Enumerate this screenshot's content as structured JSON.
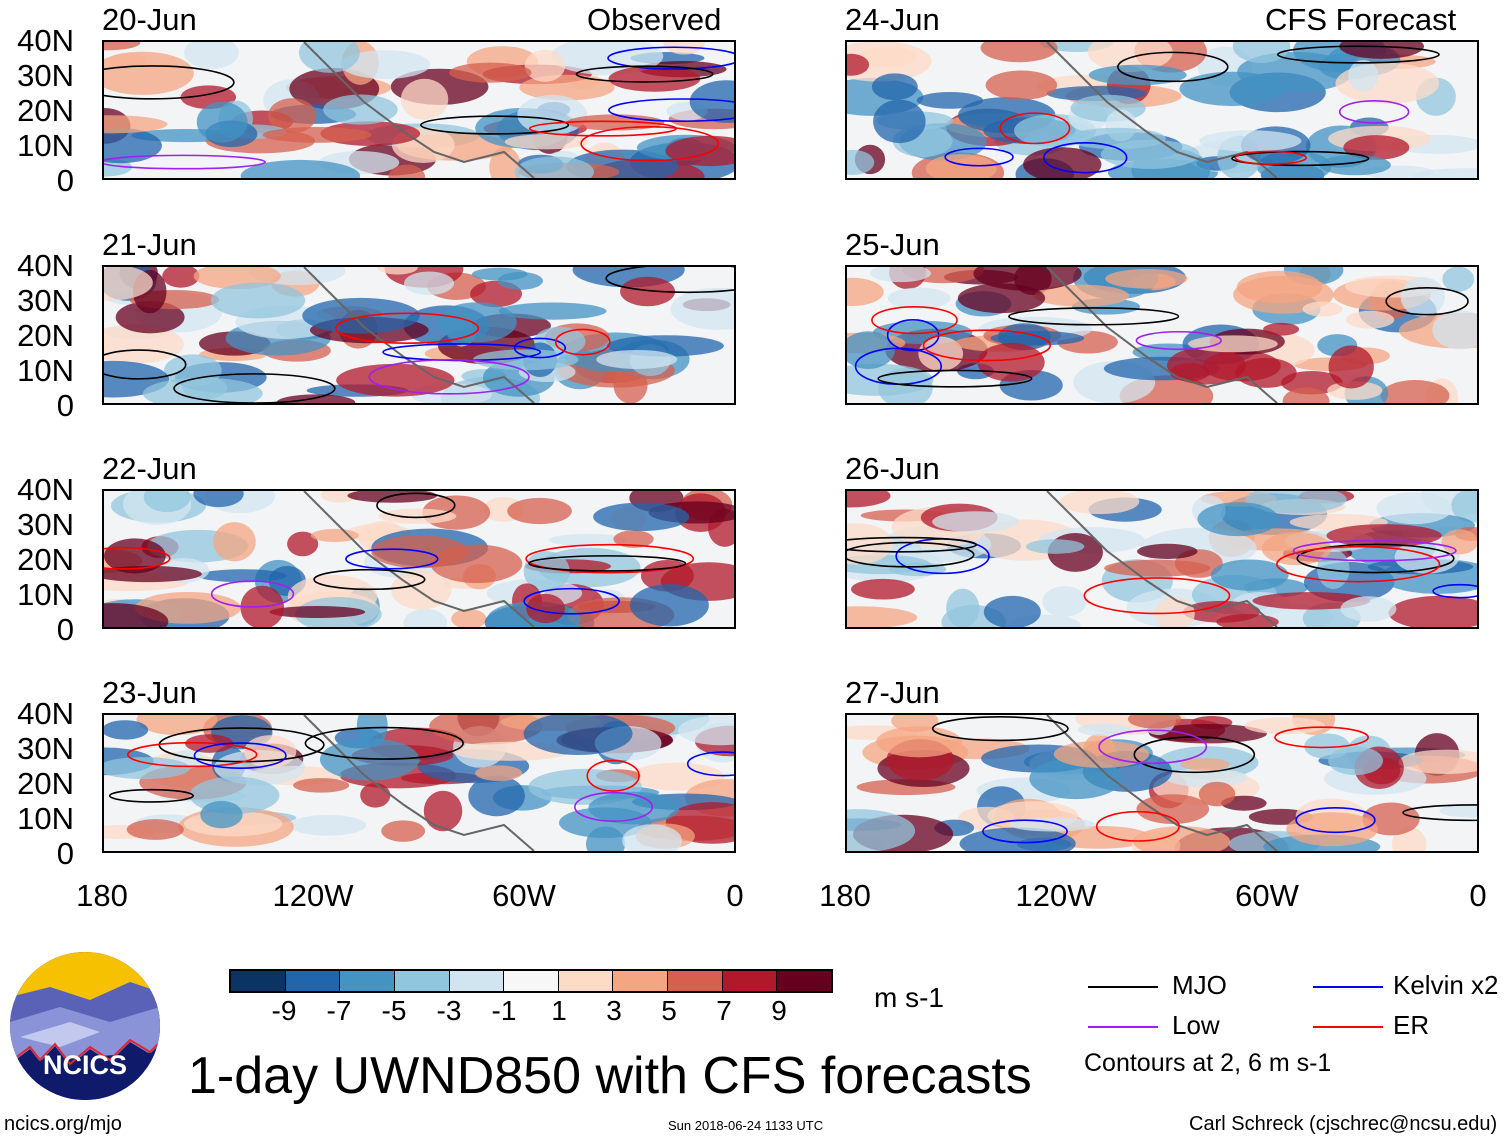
{
  "header": {
    "left_label": "Observed",
    "right_label": "CFS Forecast"
  },
  "panels": {
    "observed": [
      {
        "date": "20-Jun"
      },
      {
        "date": "21-Jun"
      },
      {
        "date": "22-Jun"
      },
      {
        "date": "23-Jun"
      }
    ],
    "forecast": [
      {
        "date": "24-Jun"
      },
      {
        "date": "25-Jun"
      },
      {
        "date": "26-Jun"
      },
      {
        "date": "27-Jun"
      }
    ]
  },
  "axes": {
    "lat_ticks": [
      "40N",
      "30N",
      "20N",
      "10N",
      "0"
    ],
    "lon_ticks": [
      "180",
      "120W",
      "60W",
      "0"
    ]
  },
  "colorbar": {
    "colors": [
      "#0b3364",
      "#2166ac",
      "#4393c3",
      "#92c5de",
      "#d1e5f0",
      "#f7f7f7",
      "#fddbc7",
      "#f4a582",
      "#d6604d",
      "#b2182b",
      "#67001f"
    ],
    "ticks": [
      "-9",
      "-7",
      "-5",
      "-3",
      "-1",
      "1",
      "3",
      "5",
      "7",
      "9"
    ],
    "units": "m s-1"
  },
  "legend": {
    "items": [
      {
        "label": "MJO",
        "color": "#000000"
      },
      {
        "label": "Kelvin x2",
        "color": "#0000ff"
      },
      {
        "label": "Low",
        "color": "#a020f0"
      },
      {
        "label": "ER",
        "color": "#ff0000"
      }
    ],
    "note": "Contours at 2, 6 m s-1"
  },
  "logo": {
    "text": "NCICS"
  },
  "title": "1-day UWND850 with CFS forecasts",
  "footer": {
    "url": "ncics.org/mjo",
    "timestamp": "Sun 2018-06-24 1133 UTC",
    "credit": "Carl Schreck (cjschrec@ncsu.edu)"
  }
}
